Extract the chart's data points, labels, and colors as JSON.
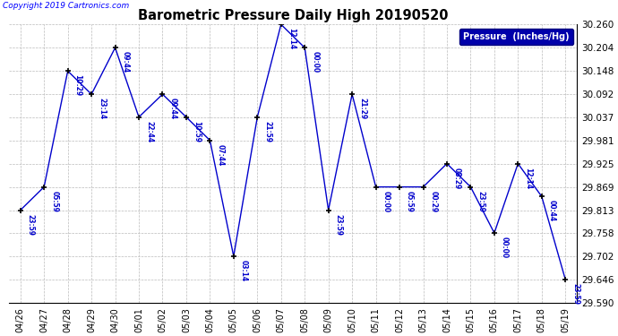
{
  "title": "Barometric Pressure Daily High 20190520",
  "copyright": "Copyright 2019 Cartronics.com",
  "legend_label": "Pressure  (Inches/Hg)",
  "ylim": [
    29.59,
    30.26
  ],
  "yticks": [
    29.59,
    29.646,
    29.702,
    29.758,
    29.813,
    29.869,
    29.925,
    29.981,
    30.037,
    30.092,
    30.148,
    30.204,
    30.26
  ],
  "dates": [
    "04/26",
    "04/27",
    "04/28",
    "04/29",
    "04/30",
    "05/01",
    "05/02",
    "05/03",
    "05/04",
    "05/05",
    "05/06",
    "05/07",
    "05/08",
    "05/09",
    "05/10",
    "05/11",
    "05/12",
    "05/13",
    "05/14",
    "05/15",
    "05/16",
    "05/17",
    "05/18",
    "05/19"
  ],
  "values": [
    29.813,
    29.869,
    30.148,
    30.092,
    30.204,
    30.037,
    30.092,
    30.037,
    29.981,
    29.702,
    30.037,
    30.26,
    30.204,
    29.813,
    30.092,
    29.869,
    29.869,
    29.869,
    29.925,
    29.869,
    29.758,
    29.925,
    29.846,
    29.646
  ],
  "times": [
    "23:59",
    "05:59",
    "10:29",
    "23:14",
    "09:44",
    "22:44",
    "09:44",
    "10:59",
    "07:44",
    "03:14",
    "21:59",
    "12:14",
    "00:00",
    "23:59",
    "21:29",
    "00:00",
    "05:59",
    "00:29",
    "08:29",
    "23:59",
    "00:00",
    "12:14",
    "00:44",
    "23:59"
  ],
  "line_color": "#0000cc",
  "annotation_color": "#0000cc",
  "background_color": "#ffffff",
  "grid_color": "#bbbbbb",
  "legend_bg": "#0000aa",
  "legend_fg": "#ffffff"
}
